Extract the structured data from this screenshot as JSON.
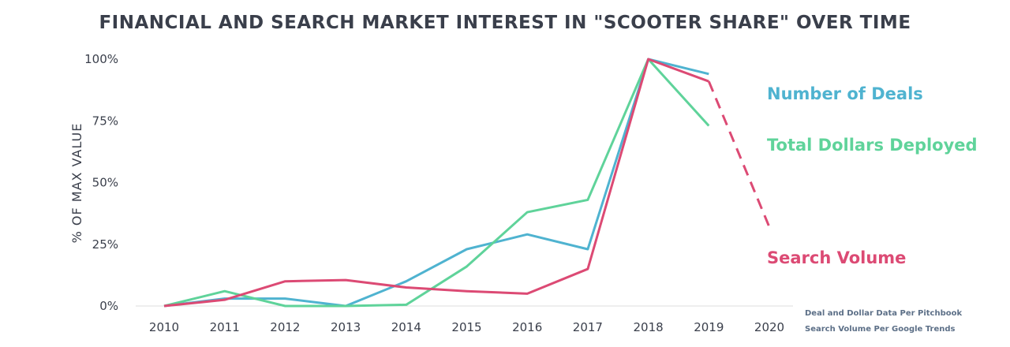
{
  "chart_data": {
    "type": "line",
    "title": "FINANCIAL AND SEARCH MARKET INTEREST IN \"SCOOTER SHARE\" OVER TIME",
    "ylabel": "% OF MAX VALUE",
    "xlabel": "",
    "categories": [
      "2010",
      "2011",
      "2012",
      "2013",
      "2014",
      "2015",
      "2016",
      "2017",
      "2018",
      "2019",
      "2020"
    ],
    "y_ticks": [
      {
        "value": 0,
        "label": "0%"
      },
      {
        "value": 25,
        "label": "25%"
      },
      {
        "value": 50,
        "label": "50%"
      },
      {
        "value": 75,
        "label": "75%"
      },
      {
        "value": 100,
        "label": "100%"
      }
    ],
    "ylim": [
      0,
      100
    ],
    "grid": false,
    "series": [
      {
        "name": "Number of Deals",
        "color": "#4fb3d0",
        "values": [
          0,
          3,
          3,
          0,
          10,
          23,
          29,
          23,
          100,
          94,
          null
        ]
      },
      {
        "name": "Total Dollars Deployed",
        "color": "#5fd39a",
        "values": [
          0,
          6,
          0,
          0,
          0.5,
          16,
          38,
          43,
          100,
          73,
          null
        ]
      },
      {
        "name": "Search Volume",
        "color": "#dc4a74",
        "values": [
          0,
          2.5,
          10,
          10.5,
          7.5,
          6,
          5,
          15,
          100,
          91,
          32
        ],
        "projected_from_index": 9
      }
    ],
    "legend_position": "right",
    "source_notes": [
      "Deal and Dollar Data Per Pitchbook",
      "Search Volume Per Google Trends"
    ]
  }
}
